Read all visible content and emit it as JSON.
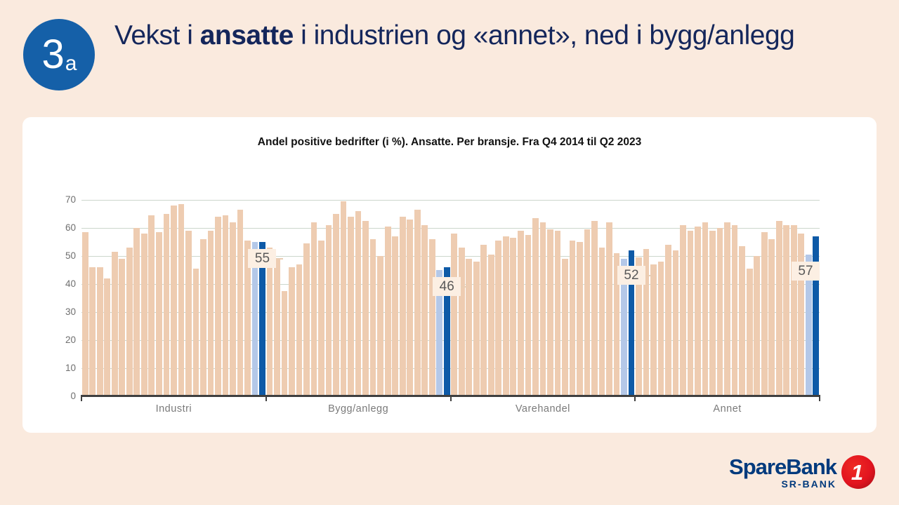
{
  "header": {
    "badge_number": "3",
    "badge_suffix": "a",
    "title_prefix": "Vekst i ",
    "title_bold": "ansatte",
    "title_suffix": " i industrien og «annet», ned i bygg/anlegg"
  },
  "chart_data": {
    "type": "bar",
    "title": "Andel positive bedrifter (i %). Ansatte. Per bransje. Fra Q4 2014 til Q2 2023",
    "ylim": [
      0,
      70
    ],
    "yticks": [
      0,
      10,
      20,
      30,
      40,
      50,
      60,
      70
    ],
    "grid": true,
    "legend_position": "none",
    "bar_colors": {
      "historic": "#eeccb1",
      "previous_quarter": "#b4c8e8",
      "latest_quarter": "#0e5aa7"
    },
    "highlight_note": "last two bars of each group are highlighted: second-to-last light blue, last dark blue with value callout",
    "groups": [
      {
        "label": "Industri",
        "callout": "55",
        "values": [
          58.5,
          46,
          46,
          42,
          51.5,
          49,
          53,
          60,
          58,
          64.5,
          58.5,
          65,
          68,
          68.5,
          59,
          45.5,
          56,
          59,
          64,
          64.5,
          62,
          66.5,
          55.5,
          55,
          55
        ]
      },
      {
        "label": "Bygg/anlegg",
        "callout": "46",
        "values": [
          53,
          49,
          37.5,
          46,
          47,
          54.5,
          62,
          55.5,
          61,
          65,
          69.5,
          64,
          66,
          62.5,
          56,
          50,
          60.5,
          57,
          64,
          63,
          66.5,
          61,
          56,
          45,
          46
        ]
      },
      {
        "label": "Varehandel",
        "callout": "52",
        "values": [
          58,
          53,
          49,
          48,
          54,
          50.5,
          55.5,
          57,
          56.5,
          59,
          57.5,
          63.5,
          62,
          59.5,
          59,
          49,
          55.5,
          55,
          59.5,
          62.5,
          53,
          62,
          51,
          49,
          52
        ]
      },
      {
        "label": "Annet",
        "callout": "57",
        "values": [
          49.5,
          52.5,
          47,
          48,
          54,
          52,
          61,
          59,
          60.5,
          62,
          59,
          60,
          62,
          61,
          53.5,
          45.5,
          50,
          58.5,
          56,
          62.5,
          61,
          61,
          58,
          50.5,
          57
        ]
      }
    ]
  },
  "logo": {
    "brand": "SpareBank",
    "one": "1",
    "sub": "SR-BANK"
  },
  "colors": {
    "page_background": "#faeade",
    "card_background": "#ffffff",
    "title_navy": "#14265b",
    "badge_blue": "#1560a8",
    "gridline": "#ccd6cc",
    "axis": "#3f3f3f",
    "axis_text": "#6f6f6f",
    "callout_background": "#fcefe3",
    "callout_text": "#595959",
    "logo_navy": "#003a7d",
    "logo_red": "#e2141f"
  }
}
